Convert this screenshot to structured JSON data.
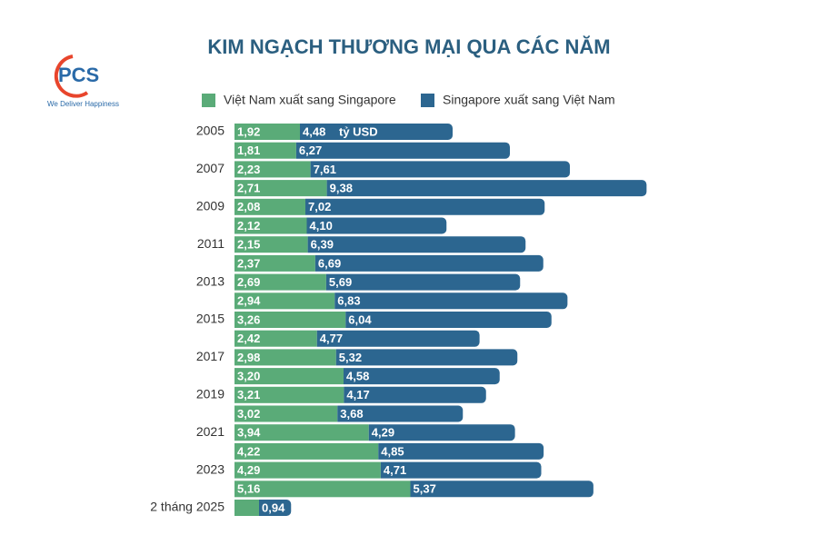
{
  "logo": {
    "text": "PCS",
    "tagline": "We Deliver Happiness"
  },
  "chart_data": {
    "type": "bar",
    "orientation": "horizontal",
    "stacked": true,
    "title": "KIM NGẠCH THƯƠNG MẠI QUA CÁC NĂM",
    "annotation": "tỷ USD",
    "categories": [
      "2005",
      null,
      "2007",
      null,
      "2009",
      null,
      "2011",
      null,
      "2013",
      null,
      "2015",
      null,
      "2017",
      null,
      "2019",
      null,
      "2021",
      null,
      "2023",
      null,
      "2 tháng 2025"
    ],
    "series": [
      {
        "name": "Việt Nam xuất sang Singapore",
        "color": "#5aab78",
        "values": [
          1.92,
          1.81,
          2.23,
          2.71,
          2.08,
          2.12,
          2.15,
          2.37,
          2.69,
          2.94,
          3.26,
          2.42,
          2.98,
          3.2,
          3.21,
          3.02,
          3.94,
          4.22,
          4.29,
          5.16,
          0.72
        ],
        "value_labels": [
          "1,92",
          "1,81",
          "2,23",
          "2,71",
          "2,08",
          "2,12",
          "2,15",
          "2,37",
          "2,69",
          "2,94",
          "3,26",
          "2,42",
          "2,98",
          "3,20",
          "3,21",
          "3,02",
          "3,94",
          "4,22",
          "4,29",
          "5,16",
          null
        ]
      },
      {
        "name": "Singapore xuất sang Việt Nam",
        "color": "#2c6690",
        "values": [
          4.48,
          6.27,
          7.61,
          9.38,
          7.02,
          4.1,
          6.39,
          6.69,
          5.69,
          6.83,
          6.04,
          4.77,
          5.32,
          4.58,
          4.17,
          3.68,
          4.29,
          4.85,
          4.71,
          5.37,
          0.94
        ],
        "value_labels": [
          "4,48",
          "6,27",
          "7,61",
          "9,38",
          "7,02",
          "4,10",
          "6,39",
          "6,69",
          "5,69",
          "6,83",
          "6,04",
          "4,77",
          "5,32",
          "4,58",
          "4,17",
          "3,68",
          "4,29",
          "4,85",
          "4,71",
          "5,37",
          "0,94"
        ]
      }
    ]
  }
}
